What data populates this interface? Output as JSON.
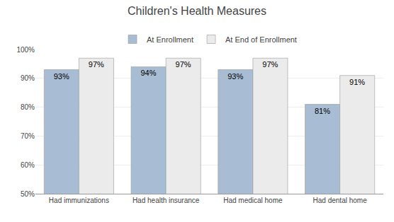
{
  "chart_data": {
    "type": "bar",
    "title": "Children's Health Measures",
    "categories": [
      "Had immunizations",
      "Had health insurance",
      "Had medical home",
      "Had dental home"
    ],
    "series": [
      {
        "name": "At Enrollment",
        "color": "#a8bdd4",
        "values": [
          93,
          94,
          93,
          81
        ],
        "value_labels": [
          "93%",
          "94%",
          "93%",
          "81%"
        ]
      },
      {
        "name": "At End of Enrollment",
        "color": "#ebebeb",
        "values": [
          97,
          97,
          97,
          91
        ],
        "value_labels": [
          "97%",
          "97%",
          "97%",
          "91%"
        ]
      }
    ],
    "ylim": [
      50,
      100
    ],
    "yticks": [
      {
        "value": 50,
        "label": "50%"
      },
      {
        "value": 60,
        "label": "60%"
      },
      {
        "value": 70,
        "label": "70%"
      },
      {
        "value": 80,
        "label": "80%"
      },
      {
        "value": 90,
        "label": "90%"
      },
      {
        "value": 100,
        "label": "100%"
      }
    ],
    "grid": true,
    "legend": "top",
    "data_labels": true
  }
}
